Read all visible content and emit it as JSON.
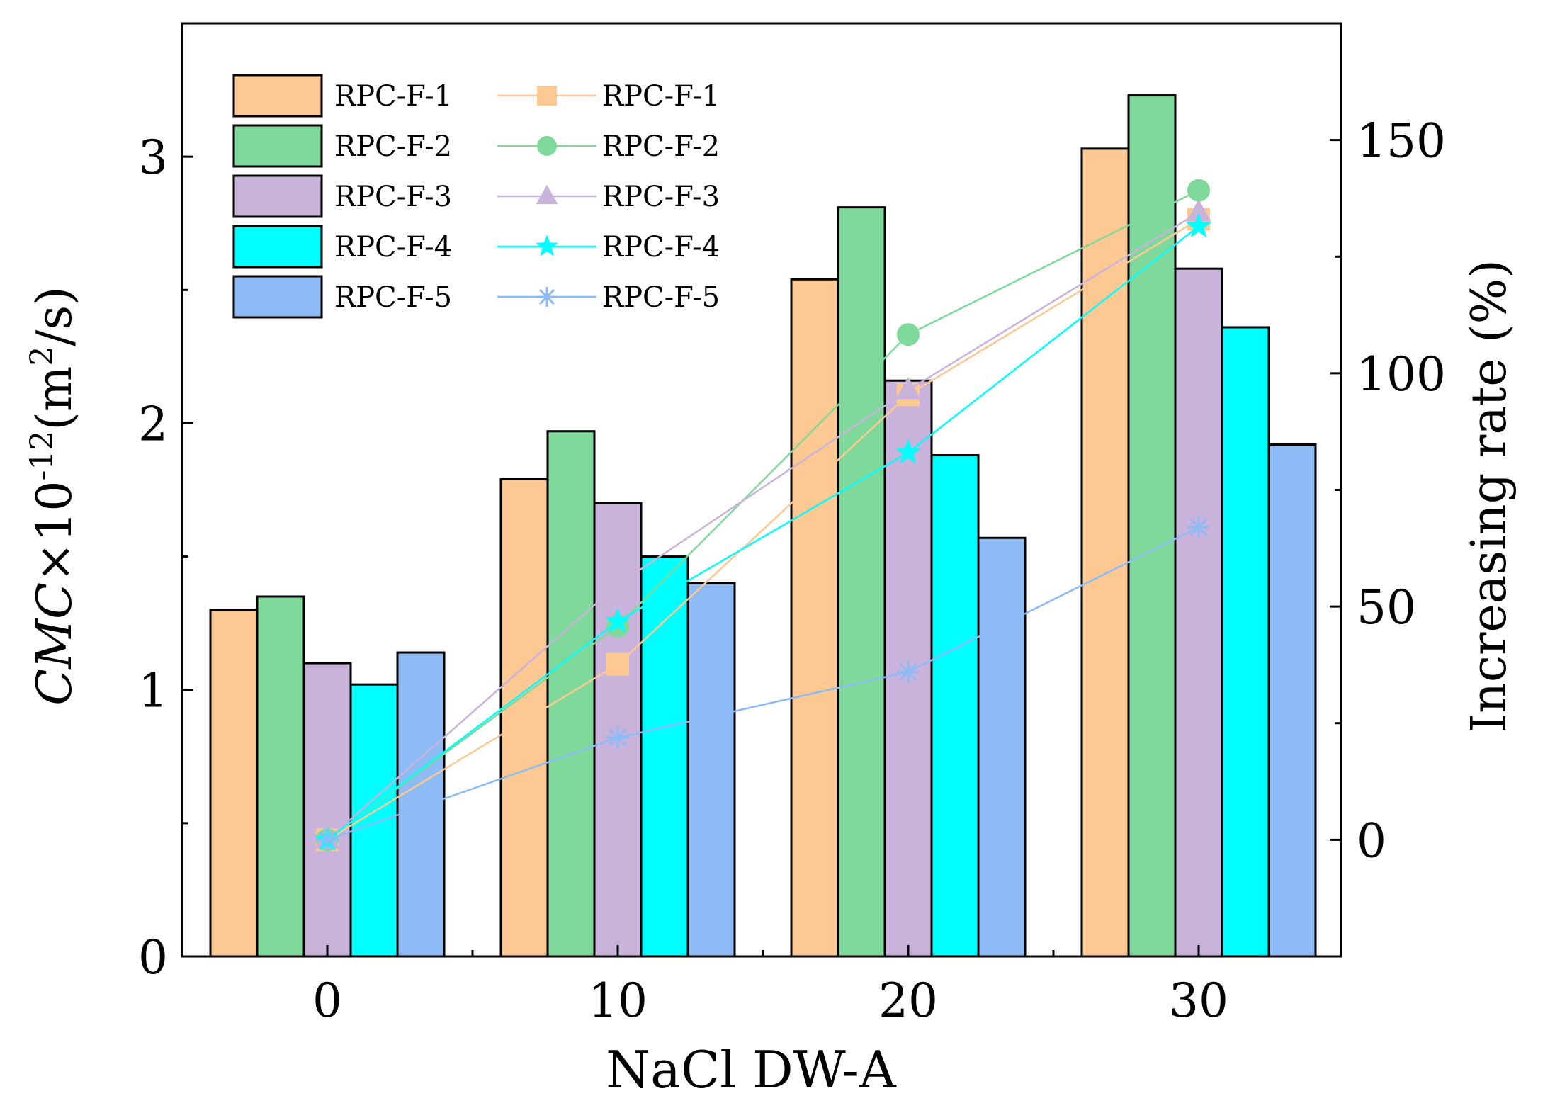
{
  "chart_data": {
    "type": "bar",
    "xlabel": "NaCl DW-A",
    "ylabel_left": {
      "italic": "CMC",
      "prefix": "×10",
      "exp1": "-12",
      "unit_open": "(m",
      "exp2": "2",
      "unit_close": "/s)"
    },
    "ylabel_right": "Increasing rate (%)",
    "categories": [
      "0",
      "10",
      "20",
      "30"
    ],
    "ylim_left": [
      0,
      3.5
    ],
    "yticks_left": [
      "0",
      "1",
      "2",
      "3"
    ],
    "ylim_right": [
      -25,
      175
    ],
    "yticks_right": [
      "0",
      "50",
      "100",
      "150"
    ],
    "bar_series": [
      {
        "name": "RPC-F-1",
        "color": "#FDC891",
        "values": [
          1.3,
          1.79,
          2.54,
          3.03
        ]
      },
      {
        "name": "RPC-F-2",
        "color": "#7FD99A",
        "values": [
          1.35,
          1.97,
          2.81,
          3.23
        ]
      },
      {
        "name": "RPC-F-3",
        "color": "#C9B3DA",
        "values": [
          1.1,
          1.7,
          2.16,
          2.58
        ]
      },
      {
        "name": "RPC-F-4",
        "color": "#00FFFF",
        "values": [
          1.02,
          1.5,
          1.88,
          2.36
        ]
      },
      {
        "name": "RPC-F-5",
        "color": "#8CBBF5",
        "values": [
          1.14,
          1.4,
          1.57,
          1.92
        ]
      }
    ],
    "line_series": [
      {
        "name": "RPC-F-1",
        "color": "#FDC891",
        "marker": "square",
        "values": [
          0,
          37.6,
          95.4,
          133.0
        ]
      },
      {
        "name": "RPC-F-2",
        "color": "#7FD99A",
        "marker": "circle",
        "values": [
          0,
          45.8,
          108.3,
          139.2
        ]
      },
      {
        "name": "RPC-F-3",
        "color": "#C9B3DA",
        "marker": "triangle",
        "values": [
          0,
          54.7,
          96.4,
          134.5
        ]
      },
      {
        "name": "RPC-F-4",
        "color": "#00FFFF",
        "marker": "star",
        "values": [
          0,
          46.8,
          83.0,
          131.5
        ]
      },
      {
        "name": "RPC-F-5",
        "color": "#8CBBF5",
        "marker": "asterisk",
        "values": [
          0,
          21.9,
          36.0,
          67.0
        ]
      }
    ],
    "legend_position": "top-left"
  }
}
